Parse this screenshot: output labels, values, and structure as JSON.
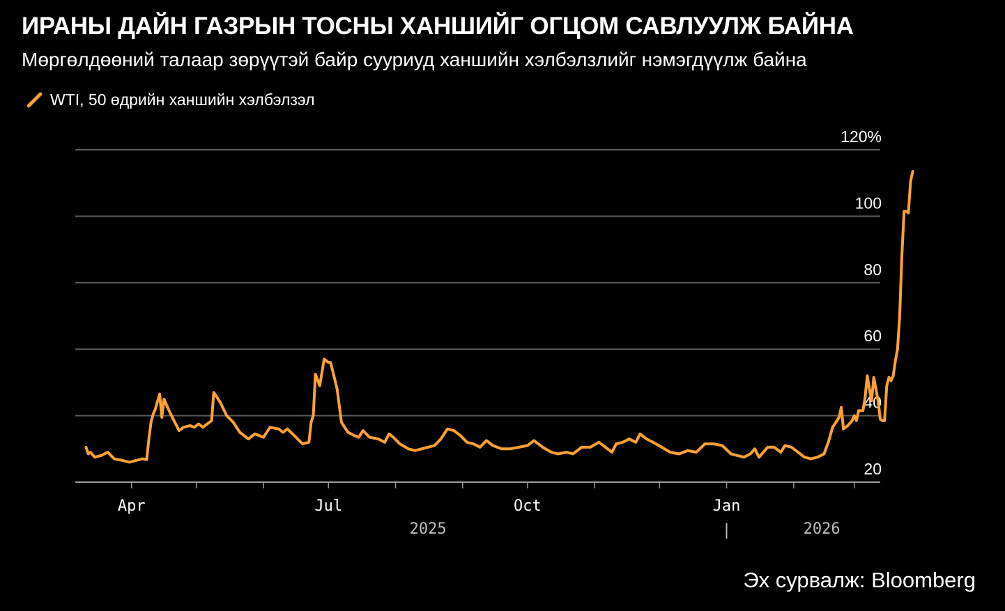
{
  "header": {
    "title": "ИРАНЫ ДАЙН ГАЗРЫН ТОСНЫ ХАНШИЙГ ОГЦОМ САВЛУУЛЖ БАЙНА",
    "subtitle": "Мөргөлдөөний талаар зөрүүтэй байр сууриуд ханшийн хэлбэлзлийг нэмэгдүүлж байна"
  },
  "footer": {
    "source": "Эх сурвалж: Bloomberg"
  },
  "colors": {
    "background": "#000000",
    "line": "#ffa135",
    "grid": "#5a5a5a",
    "text": "#ffffff",
    "axis_text": "#bfbfbf"
  },
  "chart_data": {
    "type": "line",
    "title": "ИРАНЫ ДАЙН ГАЗРЫН ТОСНЫ ХАНШИЙГ ОГЦОМ САВЛУУЛЖ БАЙНА",
    "subtitle": "Мөргөлдөөний талаар зөрүүтэй байр сууриуд ханшийн хэлбэлзлийг нэмэгдүүлж байна",
    "series_name": "WTI, 50 өдрийн ханшийн хэлбэлзэл",
    "legend_position": "top-left",
    "y_axis": {
      "min": 20,
      "max": 120,
      "ticks": [
        20,
        40,
        60,
        80,
        100,
        120
      ],
      "tick_labels": [
        "20",
        "40",
        "60",
        "80",
        "100",
        "120%"
      ],
      "side": "right",
      "grid": true
    },
    "x_axis": {
      "start": "2025-03-06",
      "end": "2026-03-13",
      "month_ticks": [
        "2025-04-01",
        "2025-05-01",
        "2025-06-01",
        "2025-07-01",
        "2025-08-01",
        "2025-09-01",
        "2025-10-01",
        "2025-11-01",
        "2025-12-01",
        "2026-01-01",
        "2026-02-01",
        "2026-03-01"
      ],
      "labeled_ticks": [
        {
          "date": "2025-04-01",
          "label": "Apr"
        },
        {
          "date": "2025-07-01",
          "label": "Jul"
        },
        {
          "date": "2025-10-01",
          "label": "Oct"
        },
        {
          "date": "2026-01-01",
          "label": "Jan"
        }
      ],
      "year_labels": [
        {
          "label": "2025",
          "center": "2025-08-16"
        },
        {
          "label": "2026",
          "center": "2026-02-14"
        }
      ],
      "year_separator": "2026-01-01",
      "year_separator_label": "|"
    },
    "points": [
      [
        "2025-03-11",
        30.5
      ],
      [
        "2025-03-12",
        28.5
      ],
      [
        "2025-03-13",
        29.0
      ],
      [
        "2025-03-15",
        27.5
      ],
      [
        "2025-03-18",
        28.0
      ],
      [
        "2025-03-21",
        29.0
      ],
      [
        "2025-03-24",
        27.0
      ],
      [
        "2025-03-28",
        26.5
      ],
      [
        "2025-03-31",
        26.0
      ],
      [
        "2025-04-03",
        26.5
      ],
      [
        "2025-04-06",
        27.0
      ],
      [
        "2025-04-08",
        26.8
      ],
      [
        "2025-04-09",
        33.0
      ],
      [
        "2025-04-10",
        38.0
      ],
      [
        "2025-04-11",
        40.5
      ],
      [
        "2025-04-12",
        42.0
      ],
      [
        "2025-04-14",
        46.5
      ],
      [
        "2025-04-15",
        39.5
      ],
      [
        "2025-04-16",
        45.0
      ],
      [
        "2025-04-18",
        42.0
      ],
      [
        "2025-04-21",
        38.0
      ],
      [
        "2025-04-23",
        35.5
      ],
      [
        "2025-04-25",
        36.5
      ],
      [
        "2025-04-28",
        37.0
      ],
      [
        "2025-04-30",
        36.5
      ],
      [
        "2025-05-02",
        37.5
      ],
      [
        "2025-05-04",
        36.5
      ],
      [
        "2025-05-06",
        37.5
      ],
      [
        "2025-05-08",
        38.5
      ],
      [
        "2025-05-09",
        47.0
      ],
      [
        "2025-05-12",
        44.0
      ],
      [
        "2025-05-15",
        40.0
      ],
      [
        "2025-05-18",
        38.0
      ],
      [
        "2025-05-21",
        35.0
      ],
      [
        "2025-05-25",
        33.0
      ],
      [
        "2025-05-28",
        34.5
      ],
      [
        "2025-06-01",
        33.5
      ],
      [
        "2025-06-04",
        36.5
      ],
      [
        "2025-06-08",
        36.0
      ],
      [
        "2025-06-10",
        35.0
      ],
      [
        "2025-06-12",
        36.0
      ],
      [
        "2025-06-16",
        33.5
      ],
      [
        "2025-06-19",
        31.5
      ],
      [
        "2025-06-22",
        32.0
      ],
      [
        "2025-06-23",
        38.0
      ],
      [
        "2025-06-24",
        40.0
      ],
      [
        "2025-06-25",
        52.5
      ],
      [
        "2025-06-27",
        49.0
      ],
      [
        "2025-06-29",
        57.0
      ],
      [
        "2025-07-01",
        56.0
      ],
      [
        "2025-07-02",
        56.0
      ],
      [
        "2025-07-05",
        48.0
      ],
      [
        "2025-07-07",
        38.0
      ],
      [
        "2025-07-10",
        35.0
      ],
      [
        "2025-07-13",
        34.0
      ],
      [
        "2025-07-15",
        33.5
      ],
      [
        "2025-07-17",
        35.5
      ],
      [
        "2025-07-20",
        33.5
      ],
      [
        "2025-07-24",
        33.0
      ],
      [
        "2025-07-27",
        32.0
      ],
      [
        "2025-07-29",
        34.5
      ],
      [
        "2025-07-31",
        33.5
      ],
      [
        "2025-08-03",
        31.5
      ],
      [
        "2025-08-07",
        30.0
      ],
      [
        "2025-08-10",
        29.5
      ],
      [
        "2025-08-13",
        30.0
      ],
      [
        "2025-08-16",
        30.5
      ],
      [
        "2025-08-19",
        31.0
      ],
      [
        "2025-08-22",
        33.0
      ],
      [
        "2025-08-25",
        36.0
      ],
      [
        "2025-08-28",
        35.5
      ],
      [
        "2025-08-31",
        34.0
      ],
      [
        "2025-09-03",
        32.0
      ],
      [
        "2025-09-06",
        31.5
      ],
      [
        "2025-09-09",
        30.5
      ],
      [
        "2025-09-12",
        32.5
      ],
      [
        "2025-09-15",
        31.0
      ],
      [
        "2025-09-19",
        30.0
      ],
      [
        "2025-09-23",
        30.0
      ],
      [
        "2025-09-27",
        30.5
      ],
      [
        "2025-10-01",
        31.0
      ],
      [
        "2025-10-04",
        32.5
      ],
      [
        "2025-10-08",
        30.5
      ],
      [
        "2025-10-12",
        29.0
      ],
      [
        "2025-10-15",
        28.5
      ],
      [
        "2025-10-19",
        29.0
      ],
      [
        "2025-10-22",
        28.5
      ],
      [
        "2025-10-26",
        30.5
      ],
      [
        "2025-10-30",
        30.5
      ],
      [
        "2025-11-03",
        32.0
      ],
      [
        "2025-11-06",
        30.5
      ],
      [
        "2025-11-09",
        29.0
      ],
      [
        "2025-11-11",
        31.5
      ],
      [
        "2025-11-14",
        32.0
      ],
      [
        "2025-11-17",
        33.0
      ],
      [
        "2025-11-20",
        32.0
      ],
      [
        "2025-11-22",
        34.5
      ],
      [
        "2025-11-25",
        33.0
      ],
      [
        "2025-11-28",
        32.0
      ],
      [
        "2025-12-02",
        30.5
      ],
      [
        "2025-12-06",
        29.0
      ],
      [
        "2025-12-10",
        28.5
      ],
      [
        "2025-12-14",
        29.5
      ],
      [
        "2025-12-18",
        29.0
      ],
      [
        "2025-12-22",
        31.5
      ],
      [
        "2025-12-26",
        31.5
      ],
      [
        "2025-12-30",
        31.0
      ],
      [
        "2026-01-03",
        28.5
      ],
      [
        "2026-01-06",
        28.0
      ],
      [
        "2026-01-09",
        27.5
      ],
      [
        "2026-01-12",
        28.5
      ],
      [
        "2026-01-14",
        30.0
      ],
      [
        "2026-01-16",
        27.5
      ],
      [
        "2026-01-18",
        29.0
      ],
      [
        "2026-01-20",
        30.5
      ],
      [
        "2026-01-23",
        30.5
      ],
      [
        "2026-01-26",
        29.0
      ],
      [
        "2026-01-28",
        31.0
      ],
      [
        "2026-01-31",
        30.5
      ],
      [
        "2026-02-03",
        29.0
      ],
      [
        "2026-02-06",
        27.5
      ],
      [
        "2026-02-09",
        27.0
      ],
      [
        "2026-02-12",
        27.5
      ],
      [
        "2026-02-15",
        28.5
      ],
      [
        "2026-02-17",
        32.0
      ],
      [
        "2026-02-19",
        36.5
      ],
      [
        "2026-02-22",
        39.5
      ],
      [
        "2026-02-23",
        42.5
      ],
      [
        "2026-02-24",
        36.0
      ],
      [
        "2026-02-26",
        37.0
      ],
      [
        "2026-02-28",
        38.5
      ],
      [
        "2026-03-01",
        40.0
      ],
      [
        "2026-03-02",
        38.5
      ],
      [
        "2026-03-03",
        41.5
      ],
      [
        "2026-03-05",
        41.5
      ],
      [
        "2026-03-06",
        45.5
      ],
      [
        "2026-03-07",
        52.0
      ],
      [
        "2026-03-08",
        48.0
      ],
      [
        "2026-03-09",
        44.5
      ],
      [
        "2026-03-10",
        51.5
      ],
      [
        "2026-03-11",
        48.0
      ],
      [
        "2026-03-12",
        44.5
      ],
      [
        "2026-03-13",
        39.0
      ],
      [
        "2026-03-14",
        38.5
      ],
      [
        "2026-03-15",
        38.5
      ],
      [
        "2026-03-16",
        49.0
      ],
      [
        "2026-03-17",
        51.5
      ],
      [
        "2026-03-18",
        50.5
      ],
      [
        "2026-03-19",
        52.0
      ],
      [
        "2026-03-20",
        56.5
      ],
      [
        "2026-03-21",
        60.0
      ],
      [
        "2026-03-22",
        70.0
      ],
      [
        "2026-03-23",
        88.0
      ],
      [
        "2026-03-24",
        101.5
      ],
      [
        "2026-03-25",
        101.5
      ],
      [
        "2026-03-26",
        101.0
      ],
      [
        "2026-03-27",
        110.5
      ],
      [
        "2026-03-28",
        113.5
      ]
    ]
  }
}
